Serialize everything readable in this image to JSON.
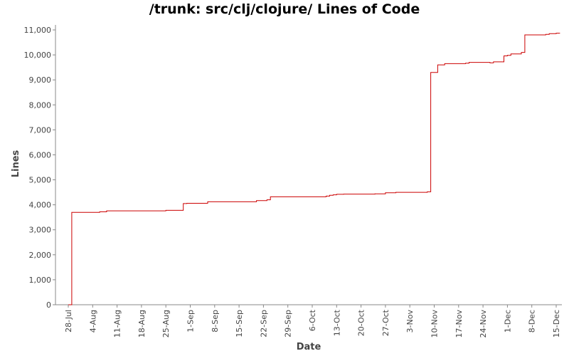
{
  "chart_data": {
    "type": "line",
    "title": "/trunk: src/clj/clojure/ Lines of Code",
    "xlabel": "Date",
    "ylabel": "Lines",
    "ylim": [
      0,
      11200
    ],
    "y_ticks": [
      0,
      1000,
      2000,
      3000,
      4000,
      5000,
      6000,
      7000,
      8000,
      9000,
      10000,
      11000
    ],
    "y_tick_labels": [
      "0",
      "1,000",
      "2,000",
      "3,000",
      "4,000",
      "5,000",
      "6,000",
      "7,000",
      "8,000",
      "9,000",
      "10,000",
      "11,000"
    ],
    "x_ticks": [
      "28-Jul",
      "4-Aug",
      "11-Aug",
      "18-Aug",
      "25-Aug",
      "1-Sep",
      "8-Sep",
      "15-Sep",
      "22-Sep",
      "29-Sep",
      "6-Oct",
      "13-Oct",
      "20-Oct",
      "27-Oct",
      "3-Nov",
      "10-Nov",
      "17-Nov",
      "24-Nov",
      "1-Dec",
      "8-Dec",
      "15-Dec"
    ],
    "grid": false,
    "step": true,
    "line_color": "#cc0000",
    "series": [
      {
        "x": [
          "28-Jul",
          "29-Jul",
          "1-Aug",
          "6-Aug",
          "8-Aug",
          "20-Aug",
          "25-Aug",
          "28-Aug",
          "30-Aug",
          "31-Aug",
          "5-Sep",
          "6-Sep",
          "20-Sep",
          "23-Sep",
          "24-Sep",
          "5-Oct",
          "10-Oct",
          "11-Oct",
          "12-Oct",
          "13-Oct",
          "15-Oct",
          "24-Oct",
          "27-Oct",
          "30-Oct",
          "8-Nov",
          "9-Nov",
          "9-Nov",
          "11-Nov",
          "13-Nov",
          "19-Nov",
          "20-Nov",
          "26-Nov",
          "27-Nov",
          "30-Nov",
          "1-Dec",
          "2-Dec",
          "5-Dec",
          "6-Dec",
          "12-Dec",
          "13-Dec",
          "15-Dec",
          "16-Dec"
        ],
        "values": [
          0,
          3700,
          3700,
          3720,
          3760,
          3760,
          3780,
          3780,
          4050,
          4060,
          4060,
          4120,
          4170,
          4200,
          4320,
          4320,
          4350,
          4380,
          4400,
          4420,
          4430,
          4440,
          4480,
          4500,
          4520,
          4640,
          9300,
          9600,
          9650,
          9670,
          9700,
          9680,
          9720,
          9960,
          9980,
          10040,
          10100,
          10800,
          10820,
          10850,
          10870,
          10880
        ]
      }
    ]
  }
}
